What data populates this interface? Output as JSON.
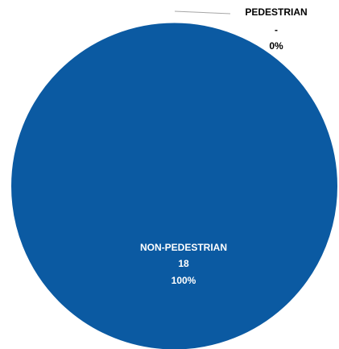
{
  "chart_data": {
    "type": "pie",
    "categories": [
      "PEDESTRIAN",
      "NON-PEDESTRIAN"
    ],
    "values": [
      0,
      18
    ],
    "value_labels": [
      "-",
      "18"
    ],
    "percent_labels": [
      "0%",
      "100%"
    ],
    "colors": {
      "PEDESTRIAN": "#4a7ebb",
      "NON-PEDESTRIAN": "#0b5aa2",
      "slice_border": "#ffffff",
      "outside_label": "#000000",
      "inside_label": "#ffffff",
      "leader_line": "#a6a6a6"
    },
    "legend": "none"
  }
}
